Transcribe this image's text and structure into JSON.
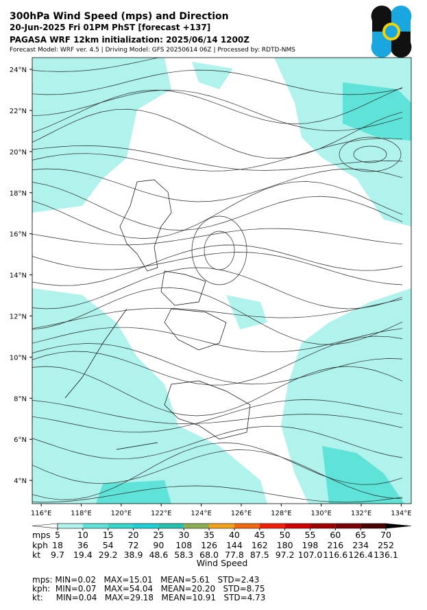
{
  "header": {
    "title": "300hPa Wind Speed (mps) and Direction",
    "subtitle": "20-Jun-2025 Fri 01PM PhST [forecast +137]",
    "init": "PAGASA WRF 12km initialization: 2025/06/14 1200Z",
    "info": "Forecast Model: WRF ver. 4.5 | Driving Model: GFS 20250614 06Z | Processed by: RDTD-NMS"
  },
  "map": {
    "lon_range": [
      115.55,
      134.5
    ],
    "lat_range": [
      2.87,
      24.57
    ],
    "lon_ticks": [
      {
        "value": 116,
        "label": "116°E"
      },
      {
        "value": 118,
        "label": "118°E"
      },
      {
        "value": 120,
        "label": "120°E"
      },
      {
        "value": 122,
        "label": "122°E"
      },
      {
        "value": 124,
        "label": "124°E"
      },
      {
        "value": 126,
        "label": "126°E"
      },
      {
        "value": 128,
        "label": "128°E"
      },
      {
        "value": 130,
        "label": "130°E"
      },
      {
        "value": 132,
        "label": "132°E"
      },
      {
        "value": 134,
        "label": "134°E"
      }
    ],
    "lat_ticks": [
      {
        "value": 4,
        "label": "4°N"
      },
      {
        "value": 6,
        "label": "6°N"
      },
      {
        "value": 8,
        "label": "8°N"
      },
      {
        "value": 10,
        "label": "10°N"
      },
      {
        "value": 12,
        "label": "12°N"
      },
      {
        "value": 14,
        "label": "14°N"
      },
      {
        "value": 16,
        "label": "16°N"
      },
      {
        "value": 18,
        "label": "18°N"
      },
      {
        "value": 20,
        "label": "20°N"
      },
      {
        "value": 22,
        "label": "22°N"
      },
      {
        "value": 24,
        "label": "24°N"
      }
    ]
  },
  "colorbar": {
    "label": "Wind Speed",
    "row_labels": [
      "mps",
      "kph",
      "kt"
    ],
    "under_color": "#ffffff",
    "over_color": "#000000",
    "colors": [
      "#b0f2ec",
      "#5fe3d8",
      "#36d6cd",
      "#1fcfd6",
      "#26c2b0",
      "#8fae52",
      "#f2a21a",
      "#f26a0e",
      "#f21e05",
      "#d10000",
      "#a00000",
      "#7a0008",
      "#4d0000"
    ],
    "mps": [
      5,
      10,
      15,
      20,
      25,
      30,
      35,
      40,
      45,
      50,
      55,
      60,
      65,
      70
    ],
    "kph": [
      "18",
      "36",
      "54",
      "72",
      "90",
      "108",
      "126",
      "144",
      "162",
      "180",
      "198",
      "216",
      "234",
      "252"
    ],
    "kt": [
      "9.7",
      "19.4",
      "29.2",
      "38.9",
      "48.6",
      "58.3",
      "68.0",
      "77.8",
      "87.5",
      "97.2",
      "107.0",
      "116.6",
      "126.4",
      "136.1"
    ]
  },
  "stats": [
    "mps: MIN=0.02   MAX=15.01   MEAN=5.61   STD=2.43",
    "kph:  MIN=0.07   MAX=54.04   MEAN=20.20   STD=8.75",
    "kt:     MIN=0.04   MAX=29.18   MEAN=10.91   STD=4.73"
  ]
}
